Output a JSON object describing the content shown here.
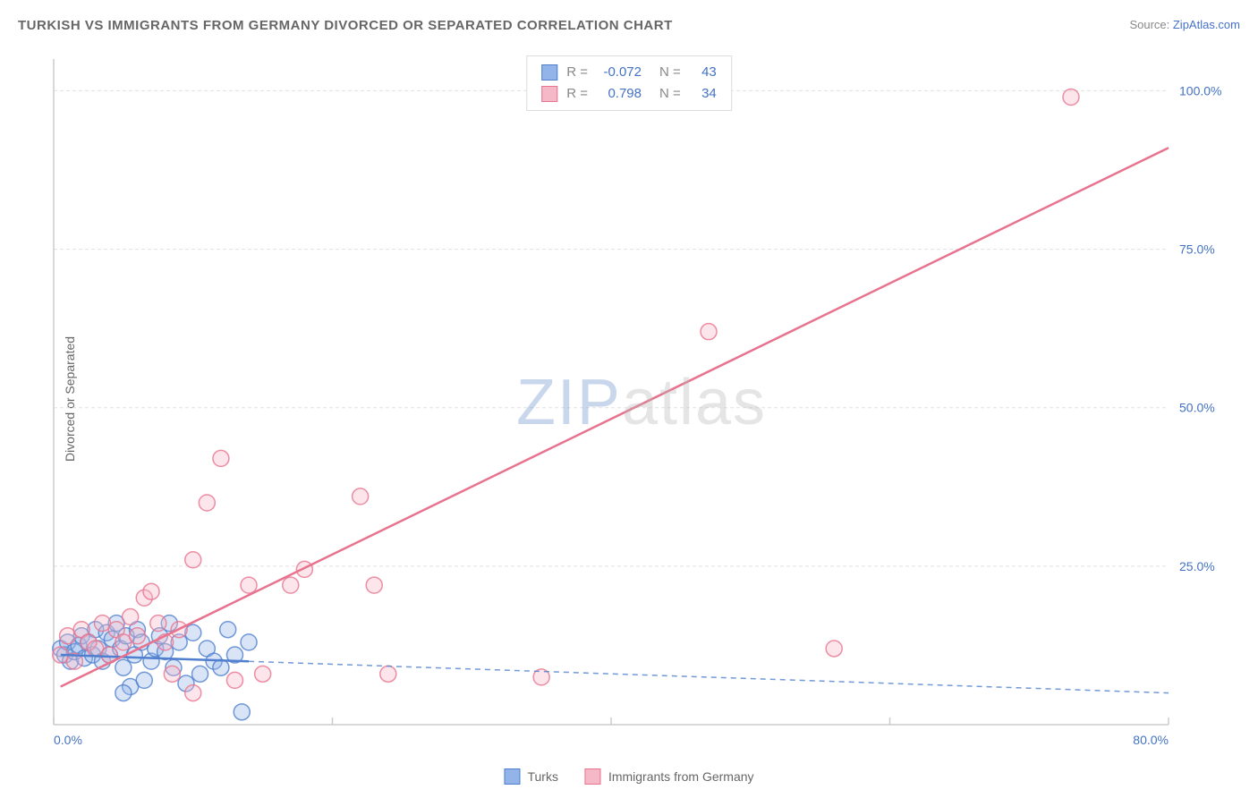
{
  "title": "TURKISH VS IMMIGRANTS FROM GERMANY DIVORCED OR SEPARATED CORRELATION CHART",
  "source_label": "Source: ",
  "source_link": "ZipAtlas.com",
  "y_axis_label": "Divorced or Separated",
  "watermark_zip": "ZIP",
  "watermark_atlas": "atlas",
  "chart": {
    "type": "scatter",
    "background_color": "#ffffff",
    "grid_color": "#e0e0e0",
    "axis_color": "#cccccc",
    "xlim": [
      0,
      80
    ],
    "ylim": [
      0,
      105
    ],
    "x_ticks": [
      0,
      20,
      40,
      60,
      80
    ],
    "x_tick_labels": [
      "0.0%",
      "",
      "",
      "",
      "80.0%"
    ],
    "y_ticks": [
      25,
      50,
      75,
      100
    ],
    "y_tick_labels": [
      "25.0%",
      "50.0%",
      "75.0%",
      "100.0%"
    ],
    "marker_radius": 9,
    "marker_opacity": 0.35,
    "line_width": 2.5,
    "series": [
      {
        "name": "Turks",
        "color_fill": "#93b4e8",
        "color_stroke": "#4f7fce",
        "r_value": "-0.072",
        "n_value": "43",
        "trend": {
          "x1": 0.5,
          "y1": 11,
          "x2": 80,
          "y2": 5,
          "solid_until_x": 14
        },
        "points": [
          [
            0.5,
            12
          ],
          [
            0.8,
            11
          ],
          [
            1,
            13
          ],
          [
            1.2,
            10
          ],
          [
            1.5,
            11.5
          ],
          [
            1.8,
            12.5
          ],
          [
            2,
            14
          ],
          [
            2.2,
            10.5
          ],
          [
            2.5,
            13
          ],
          [
            2.8,
            11
          ],
          [
            3,
            15
          ],
          [
            3.2,
            12
          ],
          [
            3.5,
            10
          ],
          [
            3.8,
            14.5
          ],
          [
            4,
            11
          ],
          [
            4.2,
            13.5
          ],
          [
            4.5,
            16
          ],
          [
            4.8,
            12
          ],
          [
            5,
            9
          ],
          [
            5.2,
            14
          ],
          [
            5.5,
            6
          ],
          [
            5.8,
            11
          ],
          [
            6,
            15
          ],
          [
            6.3,
            13
          ],
          [
            6.5,
            7
          ],
          [
            7,
            10
          ],
          [
            7.3,
            12
          ],
          [
            7.6,
            14
          ],
          [
            8,
            11.5
          ],
          [
            8.3,
            16
          ],
          [
            8.6,
            9
          ],
          [
            9,
            13
          ],
          [
            9.5,
            6.5
          ],
          [
            10,
            14.5
          ],
          [
            10.5,
            8
          ],
          [
            11,
            12
          ],
          [
            11.5,
            10
          ],
          [
            12,
            9
          ],
          [
            12.5,
            15
          ],
          [
            13,
            11
          ],
          [
            13.5,
            2
          ],
          [
            14,
            13
          ],
          [
            5,
            5
          ]
        ]
      },
      {
        "name": "Immigrants from Germany",
        "color_fill": "#f5b8c6",
        "color_stroke": "#e8738f",
        "r_value": "0.798",
        "n_value": "34",
        "trend": {
          "x1": 0.5,
          "y1": 6,
          "x2": 80,
          "y2": 91,
          "solid_until_x": 80
        },
        "points": [
          [
            0.5,
            11
          ],
          [
            1,
            14
          ],
          [
            1.5,
            10
          ],
          [
            2,
            15
          ],
          [
            2.5,
            13
          ],
          [
            3,
            12
          ],
          [
            3.5,
            16
          ],
          [
            4,
            11
          ],
          [
            4.5,
            15
          ],
          [
            5,
            13
          ],
          [
            5.5,
            17
          ],
          [
            6,
            14
          ],
          [
            6.5,
            20
          ],
          [
            7,
            21
          ],
          [
            7.5,
            16
          ],
          [
            8,
            13
          ],
          [
            8.5,
            8
          ],
          [
            9,
            15
          ],
          [
            10,
            26
          ],
          [
            11,
            35
          ],
          [
            12,
            42
          ],
          [
            13,
            7
          ],
          [
            14,
            22
          ],
          [
            15,
            8
          ],
          [
            17,
            22
          ],
          [
            18,
            24.5
          ],
          [
            22,
            36
          ],
          [
            23,
            22
          ],
          [
            24,
            8
          ],
          [
            35,
            7.5
          ],
          [
            47,
            62
          ],
          [
            56,
            12
          ],
          [
            73,
            99
          ],
          [
            10,
            5
          ]
        ]
      }
    ]
  },
  "legend_stats": {
    "r_label": "R =",
    "n_label": "N ="
  },
  "bottom_legend": [
    {
      "label": "Turks",
      "fill": "#93b4e8",
      "stroke": "#4f7fce"
    },
    {
      "label": "Immigrants from Germany",
      "fill": "#f5b8c6",
      "stroke": "#e8738f"
    }
  ]
}
